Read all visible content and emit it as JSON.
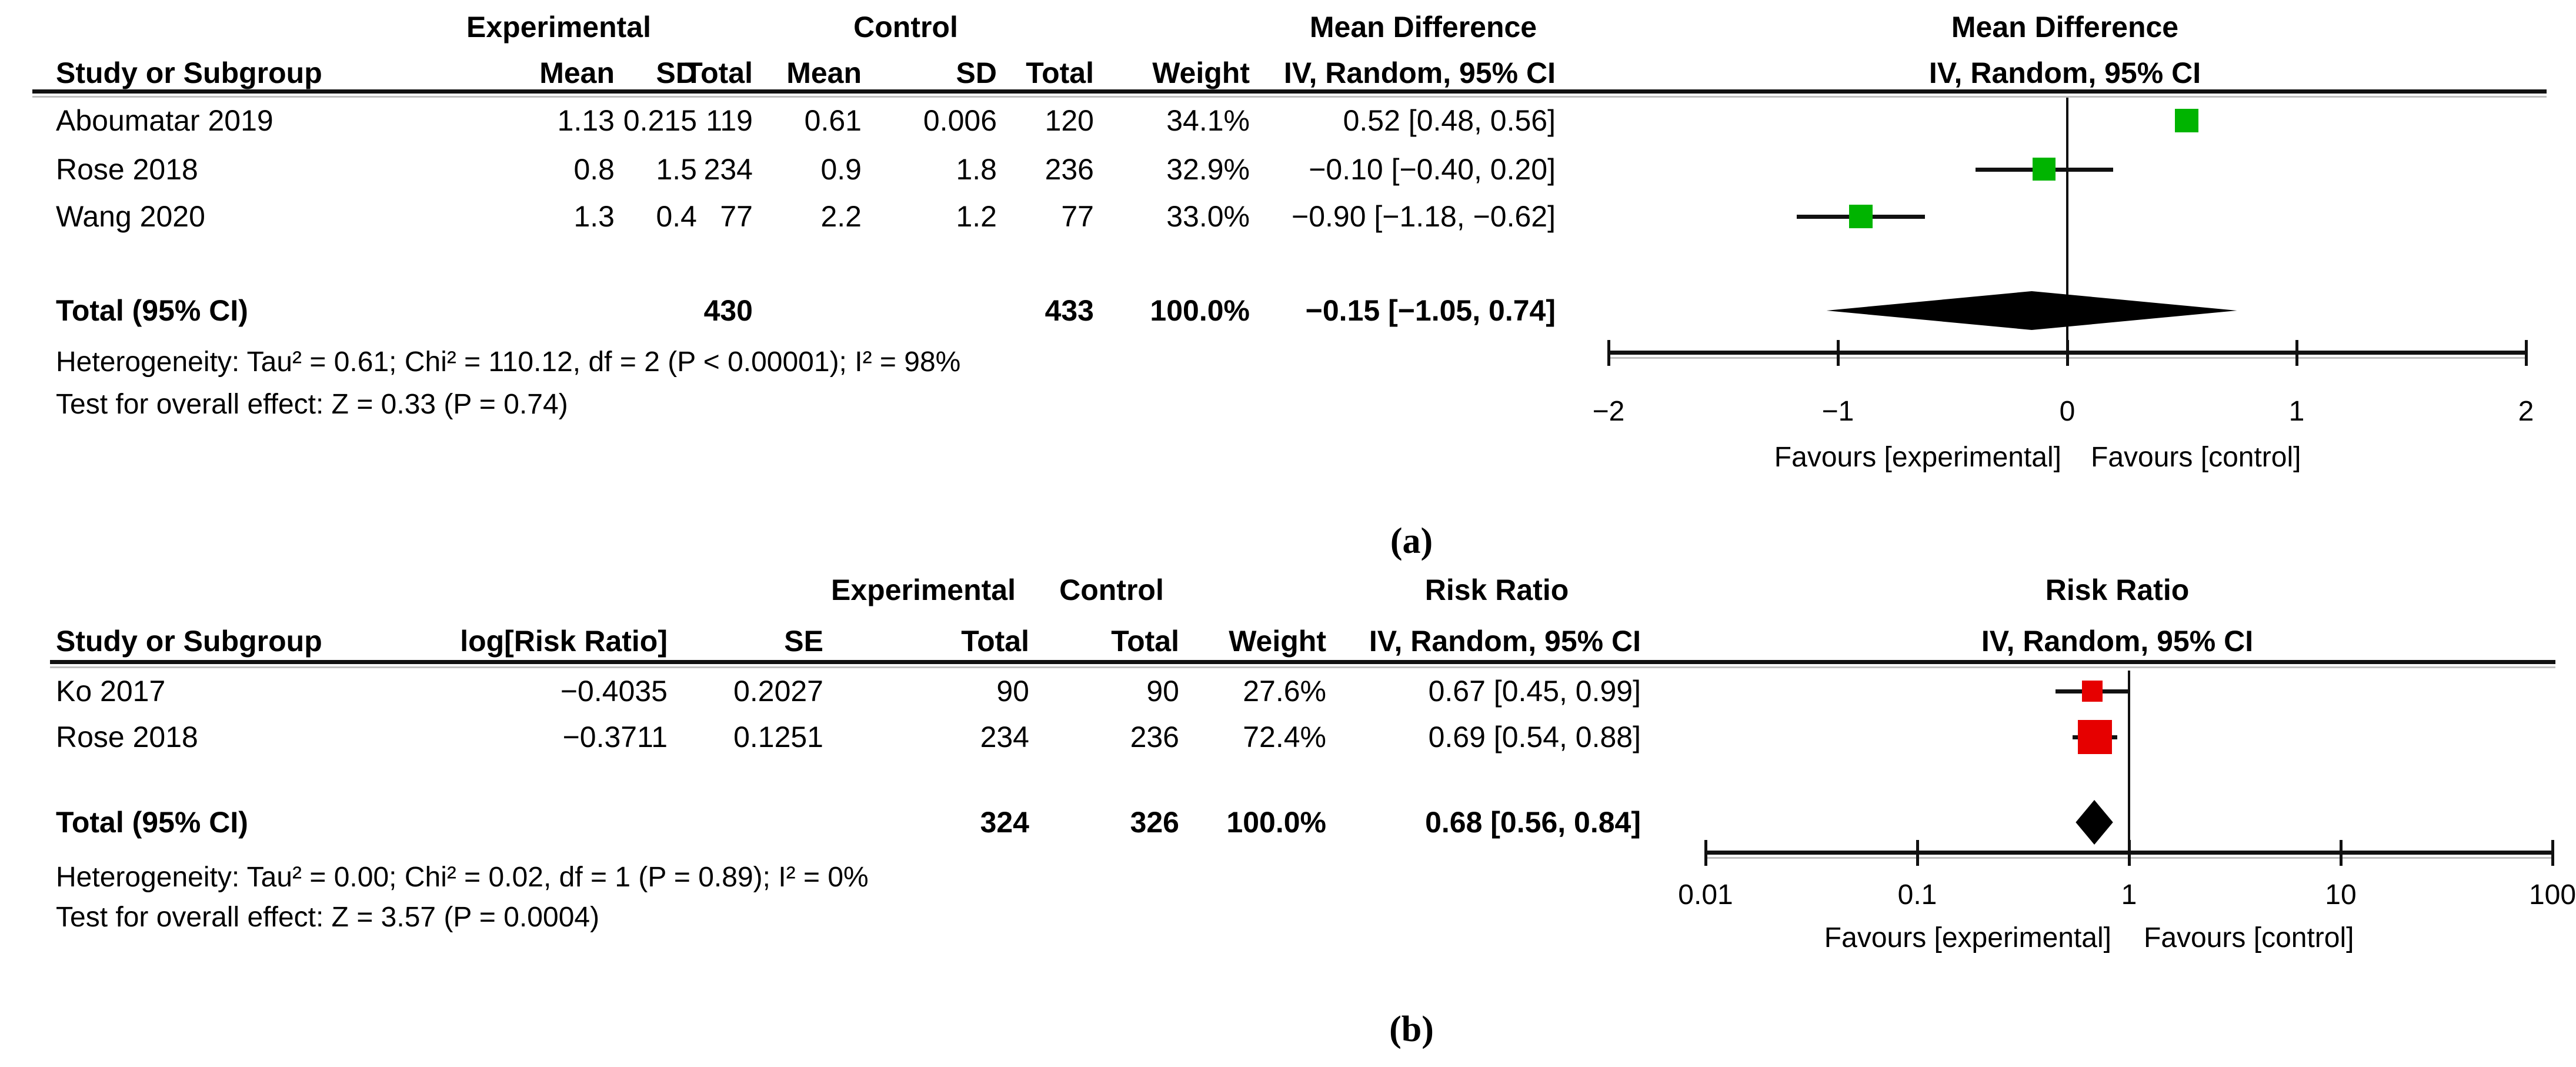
{
  "figure": {
    "caption_a": "(a)",
    "caption_b": "(b)"
  },
  "chart_data": [
    {
      "id": "a",
      "type": "forest",
      "caption": "(a)",
      "effect_measure": "Mean Difference",
      "method": "IV, Random, 95% CI",
      "groups": [
        "Experimental",
        "Control"
      ],
      "columns": [
        "Study or Subgroup",
        "Mean",
        "SD",
        "Total",
        "Mean",
        "SD",
        "Total",
        "Weight",
        "IV, Random, 95% CI"
      ],
      "marker_color": "#00b400",
      "rows": [
        {
          "study": "Aboumatar 2019",
          "mean_e": "1.13",
          "sd_e": "0.215",
          "total_e": "119",
          "mean_c": "0.61",
          "sd_c": "0.006",
          "total_c": "120",
          "weight": "34.1%",
          "weight_value": 34.1,
          "estimate": "0.52 [0.48, 0.56]",
          "point": 0.52,
          "ci_low": 0.48,
          "ci_high": 0.56
        },
        {
          "study": "Rose 2018",
          "mean_e": "0.8",
          "sd_e": "1.5",
          "total_e": "234",
          "mean_c": "0.9",
          "sd_c": "1.8",
          "total_c": "236",
          "weight": "32.9%",
          "weight_value": 32.9,
          "estimate": "−0.10 [−0.40, 0.20]",
          "point": -0.1,
          "ci_low": -0.4,
          "ci_high": 0.2
        },
        {
          "study": "Wang 2020",
          "mean_e": "1.3",
          "sd_e": "0.4",
          "total_e": "77",
          "mean_c": "2.2",
          "sd_c": "1.2",
          "total_c": "77",
          "weight": "33.0%",
          "weight_value": 33.0,
          "estimate": "−0.90 [−1.18, −0.62]",
          "point": -0.9,
          "ci_low": -1.18,
          "ci_high": -0.62
        }
      ],
      "total": {
        "label": "Total (95% CI)",
        "total_e": "430",
        "total_c": "433",
        "weight": "100.0%",
        "estimate": "−0.15 [−1.05, 0.74]",
        "point": -0.15,
        "ci_low": -1.05,
        "ci_high": 0.74
      },
      "heterogeneity": "Heterogeneity: Tau² = 0.61; Chi² = 110.12, df = 2 (P < 0.00001); I² = 98%",
      "overall_effect_test": "Test for overall effect: Z = 0.33 (P = 0.74)",
      "axis": {
        "scale": "linear",
        "min": -2,
        "max": 2,
        "ticks": [
          -2,
          -1,
          0,
          1,
          2
        ],
        "tick_labels": [
          "−2",
          "−1",
          "0",
          "1",
          "2"
        ]
      },
      "favours": {
        "left": "Favours [experimental]",
        "right": "Favours [control]"
      }
    },
    {
      "id": "b",
      "type": "forest",
      "caption": "(b)",
      "effect_measure": "Risk Ratio",
      "method": "IV, Random, 95% CI",
      "groups": [
        "Experimental",
        "Control"
      ],
      "columns": [
        "Study or Subgroup",
        "log[Risk Ratio]",
        "SE",
        "Total",
        "Total",
        "Weight",
        "IV, Random, 95% CI"
      ],
      "marker_color": "#e60000",
      "rows": [
        {
          "study": "Ko 2017",
          "log_risk_ratio": "−0.4035",
          "se": "0.2027",
          "total_e": "90",
          "total_c": "90",
          "weight": "27.6%",
          "weight_value": 27.6,
          "estimate": "0.67 [0.45, 0.99]",
          "point": 0.67,
          "ci_low": 0.45,
          "ci_high": 0.99
        },
        {
          "study": "Rose 2018",
          "log_risk_ratio": "−0.3711",
          "se": "0.1251",
          "total_e": "234",
          "total_c": "236",
          "weight": "72.4%",
          "weight_value": 72.4,
          "estimate": "0.69 [0.54, 0.88]",
          "point": 0.69,
          "ci_low": 0.54,
          "ci_high": 0.88
        }
      ],
      "total": {
        "label": "Total (95% CI)",
        "total_e": "324",
        "total_c": "326",
        "weight": "100.0%",
        "estimate": "0.68 [0.56, 0.84]",
        "point": 0.68,
        "ci_low": 0.56,
        "ci_high": 0.84
      },
      "heterogeneity": "Heterogeneity: Tau² = 0.00; Chi² = 0.02, df = 1 (P = 0.89); I² = 0%",
      "overall_effect_test": "Test for overall effect: Z = 3.57 (P = 0.0004)",
      "axis": {
        "scale": "log",
        "min": 0.01,
        "max": 100,
        "ticks": [
          0.01,
          0.1,
          1,
          10,
          100
        ],
        "tick_labels": [
          "0.01",
          "0.1",
          "1",
          "10",
          "100"
        ]
      },
      "favours": {
        "left": "Favours [experimental]",
        "right": "Favours [control]"
      }
    }
  ]
}
